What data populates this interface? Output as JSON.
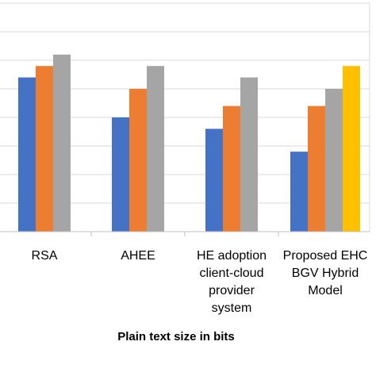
{
  "chart_data": {
    "type": "bar",
    "title": "",
    "xlabel": "Plain text size in bits",
    "ylabel": "",
    "categories": [
      [
        "RSA"
      ],
      [
        "AHEE"
      ],
      [
        "HE adoption",
        "client-cloud",
        "provider",
        "system"
      ],
      [
        "Proposed EHC",
        "BGV Hybrid",
        "Model"
      ]
    ],
    "ylim": [
      0,
      8
    ],
    "y_gridlines": [
      1,
      2,
      3,
      4,
      5,
      6,
      7,
      8
    ],
    "grid": true,
    "legend": "none",
    "series": [
      {
        "color": "#4472C4",
        "values": [
          5.4,
          4.0,
          3.6,
          2.8
        ]
      },
      {
        "color": "#ED7D31",
        "values": [
          5.8,
          5.0,
          4.4,
          4.4
        ]
      },
      {
        "color": "#A5A5A5",
        "values": [
          6.2,
          5.8,
          5.4,
          5.0
        ]
      },
      {
        "color": "#FFC000",
        "values": [
          null,
          null,
          null,
          5.8
        ]
      }
    ]
  }
}
